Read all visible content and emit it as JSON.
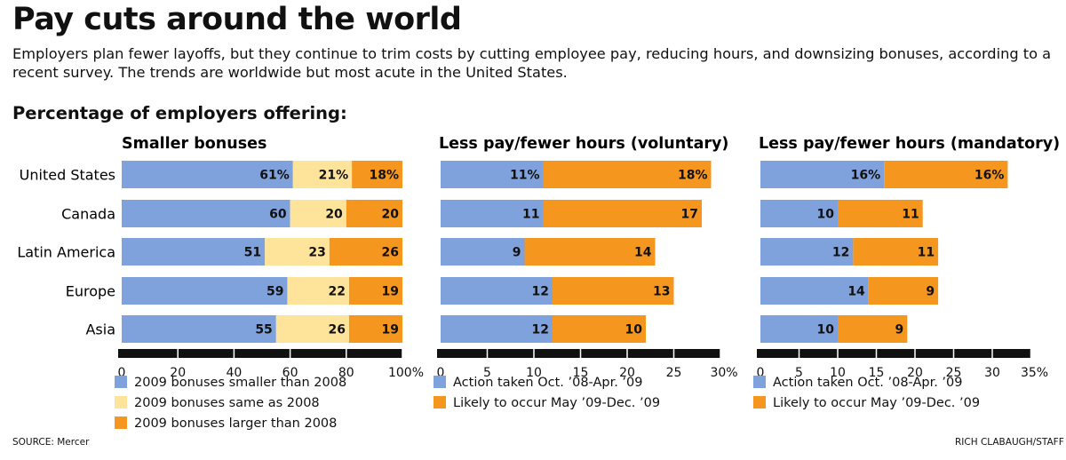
{
  "header": {
    "title": "Pay cuts around the world",
    "subtitle": "Employers plan fewer layoffs, but they continue to trim costs by cutting employee pay, reducing hours, and downsizing bonuses, according to a recent survey. The trends are worldwide but most acute in the United States.",
    "section_label": "Percentage of employers offering:"
  },
  "footer": {
    "source": "SOURCE: Mercer",
    "credit": "RICH CLABAUGH/STAFF"
  },
  "colors": {
    "blue": "#7fa2dc",
    "yellow": "#fde49a",
    "orange": "#f5961e"
  },
  "chart_data": [
    {
      "type": "bar",
      "orientation": "horizontal",
      "stacked": true,
      "title": "Smaller bonuses",
      "categories": [
        "United States",
        "Canada",
        "Latin America",
        "Europe",
        "Asia"
      ],
      "series": [
        {
          "name": "2009 bonuses smaller than 2008",
          "color": "#7fa2dc",
          "values": [
            61,
            60,
            51,
            59,
            55
          ],
          "labels": [
            "61%",
            "60",
            "51",
            "59",
            "55"
          ]
        },
        {
          "name": "2009 bonuses same as 2008",
          "color": "#fde49a",
          "values": [
            21,
            20,
            23,
            22,
            26
          ],
          "labels": [
            "21%",
            "20",
            "23",
            "22",
            "26"
          ]
        },
        {
          "name": "2009 bonuses larger than 2008",
          "color": "#f5961e",
          "values": [
            18,
            20,
            26,
            19,
            19
          ],
          "labels": [
            "18%",
            "20",
            "26",
            "19",
            "19"
          ]
        }
      ],
      "xlim": [
        0,
        100
      ],
      "ticks": [
        0,
        20,
        40,
        60,
        80,
        100
      ],
      "tick_labels": [
        "0",
        "20",
        "40",
        "60",
        "80",
        "100%"
      ]
    },
    {
      "type": "bar",
      "orientation": "horizontal",
      "stacked": true,
      "title": "Less pay/fewer hours (voluntary)",
      "categories": [
        "United States",
        "Canada",
        "Latin America",
        "Europe",
        "Asia"
      ],
      "series": [
        {
          "name": "Action taken Oct. ’08-Apr. ’09",
          "color": "#7fa2dc",
          "values": [
            11,
            11,
            9,
            12,
            12
          ],
          "labels": [
            "11%",
            "11",
            "9",
            "12",
            "12"
          ]
        },
        {
          "name": "Likely to occur May ’09-Dec. ’09",
          "color": "#f5961e",
          "values": [
            18,
            17,
            14,
            13,
            10
          ],
          "labels": [
            "18%",
            "17",
            "14",
            "13",
            "10"
          ]
        }
      ],
      "xlim": [
        0,
        30
      ],
      "ticks": [
        0,
        5,
        10,
        15,
        20,
        25,
        30
      ],
      "tick_labels": [
        "0",
        "5",
        "10",
        "15",
        "20",
        "25",
        "30%"
      ]
    },
    {
      "type": "bar",
      "orientation": "horizontal",
      "stacked": true,
      "title": "Less pay/fewer hours (mandatory)",
      "categories": [
        "United States",
        "Canada",
        "Latin America",
        "Europe",
        "Asia"
      ],
      "series": [
        {
          "name": "Action taken Oct. ’08-Apr. ’09",
          "color": "#7fa2dc",
          "values": [
            16,
            10,
            12,
            14,
            10
          ],
          "labels": [
            "16%",
            "10",
            "12",
            "14",
            "10"
          ]
        },
        {
          "name": "Likely to occur May ’09-Dec. ’09",
          "color": "#f5961e",
          "values": [
            16,
            11,
            11,
            9,
            9
          ],
          "labels": [
            "16%",
            "11",
            "11",
            "9",
            "9"
          ]
        }
      ],
      "xlim": [
        0,
        35
      ],
      "ticks": [
        0,
        5,
        10,
        15,
        20,
        25,
        30,
        35
      ],
      "tick_labels": [
        "0",
        "5",
        "10",
        "15",
        "20",
        "25",
        "30",
        "35%"
      ]
    }
  ]
}
